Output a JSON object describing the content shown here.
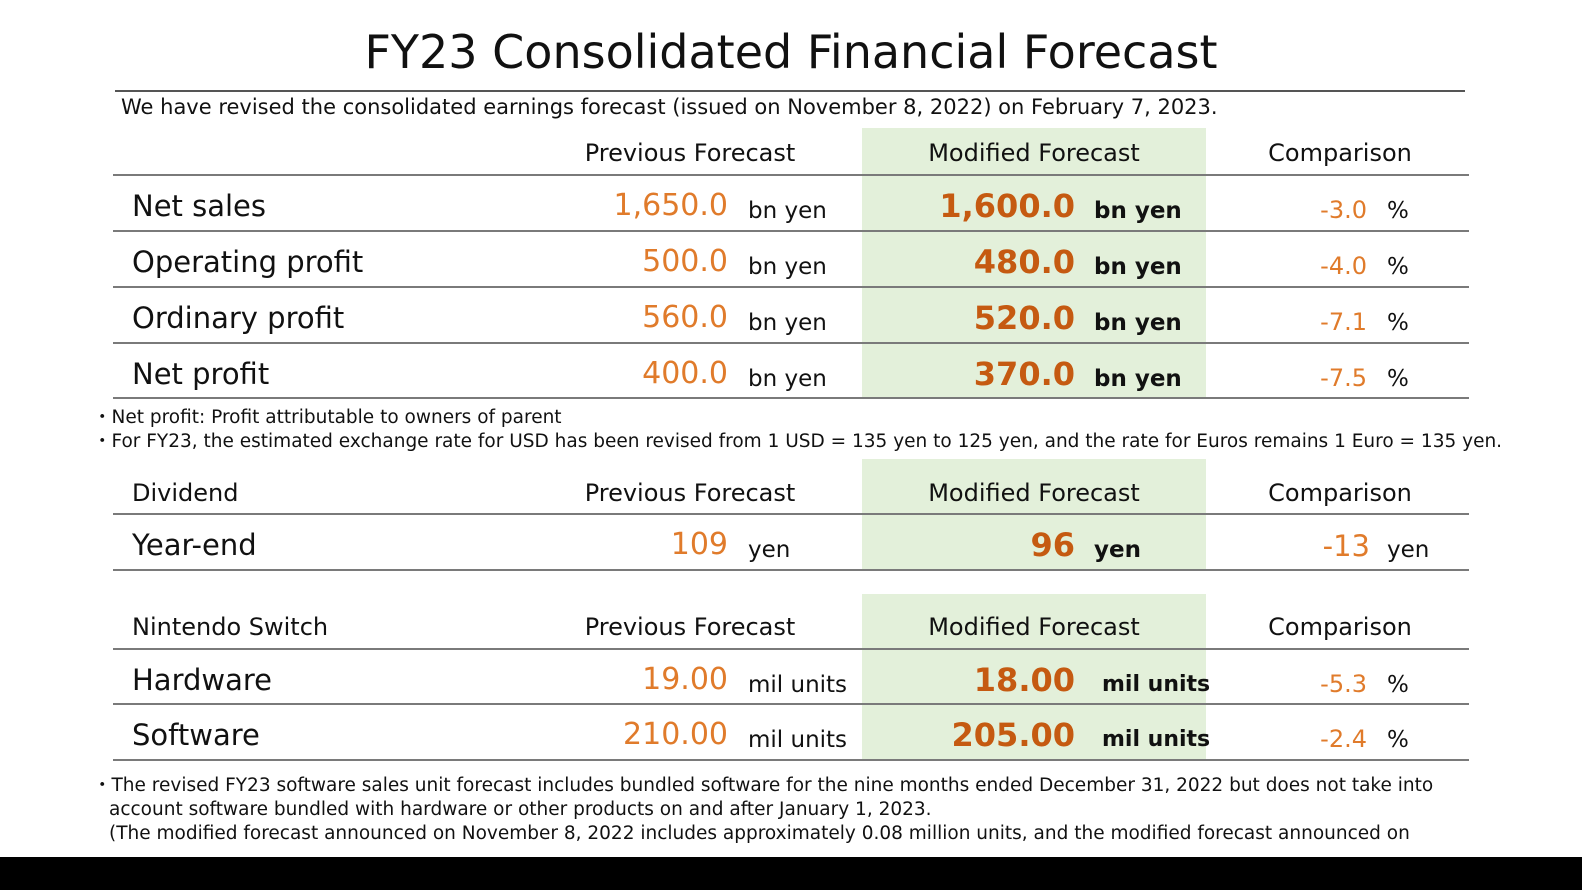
{
  "title": "FY23 Consolidated Financial Forecast",
  "intro": "We have revised the consolidated earnings forecast (issued on November 8, 2022) on February 7, 2023.",
  "colors": {
    "previous": "#e07b2b",
    "modified": "#c55a11",
    "highlight": "#e3f0da"
  },
  "earnings": {
    "headers": {
      "previous": "Previous Forecast",
      "modified": "Modified Forecast",
      "comparison": "Comparison"
    },
    "rows": [
      {
        "label": "Net sales",
        "previous": "1,650.0",
        "previous_unit": "bn yen",
        "modified": "1,600.0",
        "modified_unit": "bn yen",
        "comparison": "-3.0",
        "comparison_unit": "%"
      },
      {
        "label": "Operating profit",
        "previous": "500.0",
        "previous_unit": "bn yen",
        "modified": "480.0",
        "modified_unit": "bn yen",
        "comparison": "-4.0",
        "comparison_unit": "%"
      },
      {
        "label": "Ordinary profit",
        "previous": "560.0",
        "previous_unit": "bn yen",
        "modified": "520.0",
        "modified_unit": "bn yen",
        "comparison": "-7.1",
        "comparison_unit": "%"
      },
      {
        "label": "Net profit",
        "previous": "400.0",
        "previous_unit": "bn yen",
        "modified": "370.0",
        "modified_unit": "bn yen",
        "comparison": "-7.5",
        "comparison_unit": "%"
      }
    ]
  },
  "notes1": [
    "・Net profit: Profit attributable to owners of parent",
    "・For FY23, the estimated exchange rate for USD has been revised from 1 USD = 135 yen to 125 yen, and the rate for Euros remains 1 Euro = 135 yen."
  ],
  "dividend": {
    "title": "Dividend",
    "headers": {
      "previous": "Previous Forecast",
      "modified": "Modified Forecast",
      "comparison": "Comparison"
    },
    "row": {
      "label": "Year-end",
      "previous": "109",
      "previous_unit": "yen",
      "modified": "96",
      "modified_unit": "yen",
      "comparison": "-13",
      "comparison_unit": "yen"
    }
  },
  "switch": {
    "title": "Nintendo Switch",
    "headers": {
      "previous": "Previous Forecast",
      "modified": "Modified Forecast",
      "comparison": "Comparison"
    },
    "rows": [
      {
        "label": "Hardware",
        "previous": "19.00",
        "previous_unit": "mil units",
        "modified": "18.00",
        "modified_unit": "mil units",
        "comparison": "-5.3",
        "comparison_unit": "%"
      },
      {
        "label": "Software",
        "previous": "210.00",
        "previous_unit": "mil units",
        "modified": "205.00",
        "modified_unit": "mil units",
        "comparison": "-2.4",
        "comparison_unit": "%"
      }
    ]
  },
  "notes2": [
    "・The revised FY23 software sales unit forecast includes bundled software for the nine months ended December 31, 2022 but does not take into",
    "account software bundled with hardware or other products on and after January 1, 2023.",
    "(The modified forecast announced on November 8, 2022 includes approximately 0.08 million units, and the modified forecast announced on"
  ]
}
